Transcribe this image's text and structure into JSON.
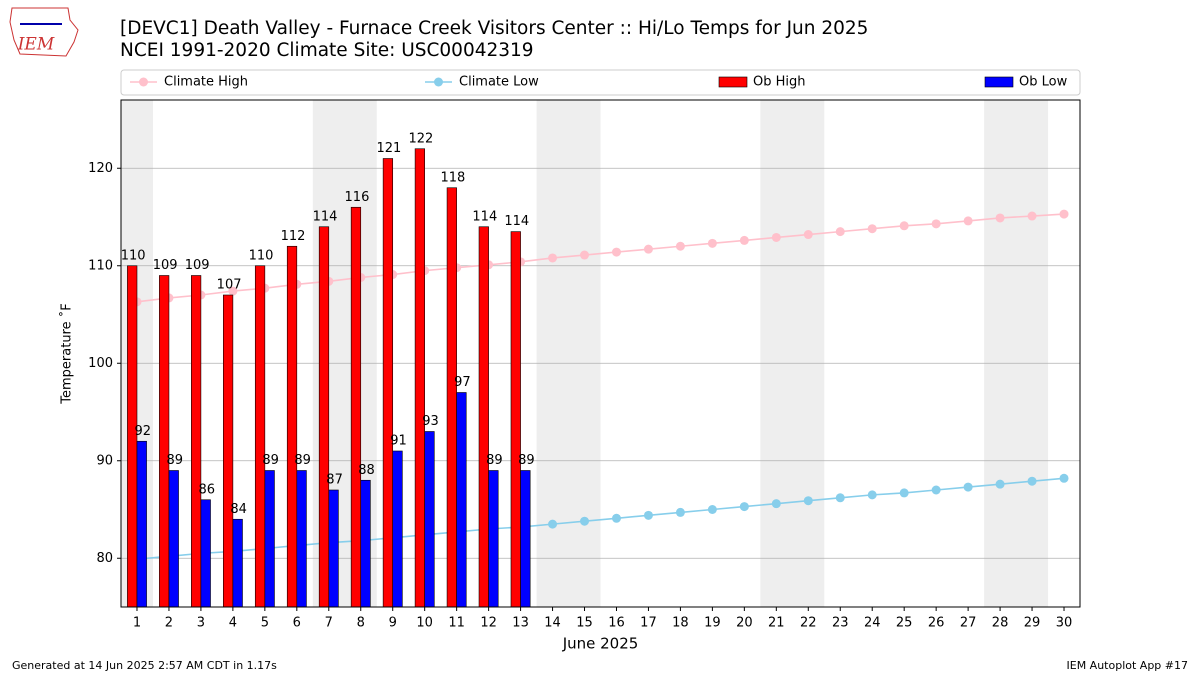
{
  "logo_text": "IEM",
  "footer_left": "Generated at 14 Jun 2025 2:57 AM CDT in 1.17s",
  "footer_right": "IEM Autoplot App #17",
  "chart_data": {
    "type": "bar",
    "title": "[DEVC1] Death Valley - Furnace Creek Visitors Center :: Hi/Lo Temps for Jun 2025",
    "subtitle": "NCEI 1991-2020 Climate Site: USC00042319",
    "xlabel": "June 2025",
    "ylabel": "Temperature ˚F",
    "x": [
      1,
      2,
      3,
      4,
      5,
      6,
      7,
      8,
      9,
      10,
      11,
      12,
      13,
      14,
      15,
      16,
      17,
      18,
      19,
      20,
      21,
      22,
      23,
      24,
      25,
      26,
      27,
      28,
      29,
      30
    ],
    "xlim": [
      0.5,
      30.5
    ],
    "xticks": [
      1,
      2,
      3,
      4,
      5,
      6,
      7,
      8,
      9,
      10,
      11,
      12,
      13,
      14,
      15,
      16,
      17,
      18,
      19,
      20,
      21,
      22,
      23,
      24,
      25,
      26,
      27,
      28,
      29,
      30
    ],
    "ylim": [
      75,
      127
    ],
    "yticks": [
      80,
      90,
      100,
      110,
      120
    ],
    "grid": "y",
    "shaded_x": [
      [
        0.5,
        1.5
      ],
      [
        6.5,
        8.5
      ],
      [
        13.5,
        15.5
      ],
      [
        20.5,
        22.5
      ],
      [
        27.5,
        29.5
      ]
    ],
    "shade_color": "#eeeeee",
    "series": [
      {
        "name": "Climate High",
        "type": "line",
        "color": "#ffc0cb",
        "values": [
          106.3,
          106.7,
          107.0,
          107.4,
          107.7,
          108.1,
          108.4,
          108.8,
          109.1,
          109.5,
          109.8,
          110.1,
          110.4,
          110.8,
          111.1,
          111.4,
          111.7,
          112.0,
          112.3,
          112.6,
          112.9,
          113.2,
          113.5,
          113.8,
          114.1,
          114.3,
          114.6,
          114.9,
          115.1,
          115.3
        ]
      },
      {
        "name": "Climate Low",
        "type": "line",
        "color": "#87ceeb",
        "values": [
          79.9,
          80.2,
          80.5,
          80.7,
          81.0,
          81.3,
          81.6,
          81.8,
          82.1,
          82.4,
          82.7,
          83.0,
          83.2,
          83.5,
          83.8,
          84.1,
          84.4,
          84.7,
          85.0,
          85.3,
          85.6,
          85.9,
          86.2,
          86.5,
          86.7,
          87.0,
          87.3,
          87.6,
          87.9,
          88.2
        ]
      },
      {
        "name": "Ob High",
        "type": "bar",
        "color": "#ff0000",
        "offset": -0.3,
        "values": [
          110,
          109,
          109,
          107,
          110,
          112,
          114,
          116,
          121,
          122,
          118,
          114,
          113.5,
          null,
          null,
          null,
          null,
          null,
          null,
          null,
          null,
          null,
          null,
          null,
          null,
          null,
          null,
          null,
          null,
          null
        ],
        "value_labels": [
          "110",
          "109",
          "109",
          "107",
          "110",
          "112",
          "114",
          "116",
          "121",
          "122",
          "118",
          "114",
          "114",
          null,
          null,
          null,
          null,
          null,
          null,
          null,
          null,
          null,
          null,
          null,
          null,
          null,
          null,
          null,
          null,
          null
        ]
      },
      {
        "name": "Ob Low",
        "type": "bar",
        "color": "#0000ff",
        "offset": 0,
        "values": [
          92,
          89,
          86,
          84,
          89,
          89,
          87,
          88,
          91,
          93,
          97,
          89,
          89,
          null,
          null,
          null,
          null,
          null,
          null,
          null,
          null,
          null,
          null,
          null,
          null,
          null,
          null,
          null,
          null,
          null
        ]
      }
    ]
  }
}
